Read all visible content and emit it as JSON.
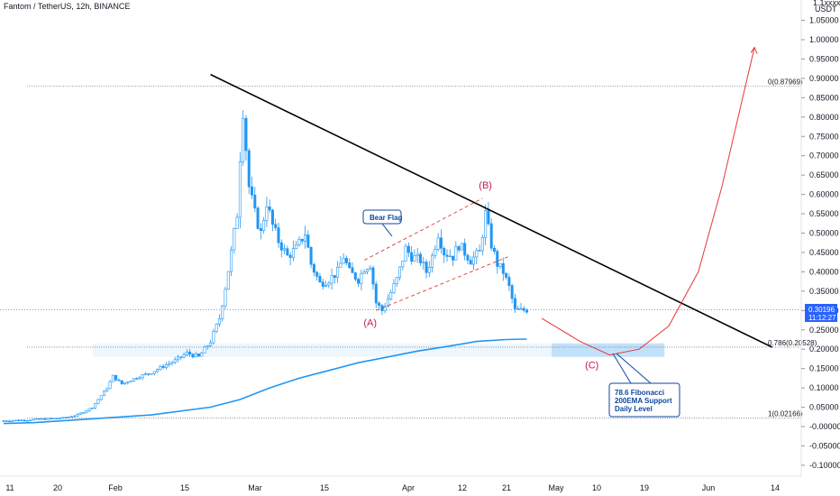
{
  "header": {
    "title": "Fantom / TetherUS, 12h, BINANCE",
    "currency_line1": "1.1xxxxx",
    "currency_line2": "USDT"
  },
  "price_badge": {
    "price": "0.30196",
    "countdown": "11:12:27",
    "color": "#2962ff"
  },
  "colors": {
    "candle": "#2196f3",
    "ema": "#2196f3",
    "trendline": "#000000",
    "projection": "#e53935",
    "annotation": "#c2185b",
    "support_zone": "#bbdefb"
  },
  "chart_data": {
    "type": "candlestick",
    "symbol": "FTMUSDT",
    "timeframe": "12h",
    "x_tick_labels": [
      "11",
      "20",
      "Feb",
      "15",
      "Mar",
      "15",
      "Apr",
      "12",
      "21",
      "May",
      "10",
      "19",
      "Jun",
      "14"
    ],
    "y_ticks": [
      1.05,
      1.0,
      0.95,
      0.9,
      0.85,
      0.8,
      0.75,
      0.7,
      0.65,
      0.6,
      0.55,
      0.5,
      0.45,
      0.4,
      0.35,
      0.3,
      0.25,
      0.2,
      0.15,
      0.1,
      0.05,
      0.0,
      -0.05,
      -0.1
    ],
    "y_tick_labels": [
      "1.05000",
      "1.00000",
      "0.95000",
      "0.90000",
      "0.85000",
      "0.80000",
      "0.75000",
      "0.70000",
      "0.65000",
      "0.60000",
      "0.55000",
      "0.50000",
      "0.45000",
      "0.40000",
      "0.35000",
      "0.30000",
      "0.25000",
      "0.20000",
      "0.15000",
      "0.10000",
      "0.05000",
      "-0.00000",
      "-0.05000",
      "-0.10000"
    ],
    "ylim": [
      -0.12,
      1.16
    ],
    "price_path": [
      [
        0,
        0.015
      ],
      [
        5,
        0.016
      ],
      [
        10,
        0.018
      ],
      [
        15,
        0.02
      ],
      [
        20,
        0.022
      ],
      [
        25,
        0.03
      ],
      [
        30,
        0.05
      ],
      [
        33,
        0.08
      ],
      [
        35,
        0.1
      ],
      [
        37,
        0.13
      ],
      [
        40,
        0.11
      ],
      [
        43,
        0.12
      ],
      [
        46,
        0.13
      ],
      [
        50,
        0.14
      ],
      [
        55,
        0.16
      ],
      [
        58,
        0.17
      ],
      [
        62,
        0.19
      ],
      [
        66,
        0.18
      ],
      [
        68,
        0.2
      ],
      [
        70,
        0.22
      ],
      [
        73,
        0.28
      ],
      [
        75,
        0.36
      ],
      [
        77,
        0.45
      ],
      [
        79,
        0.55
      ],
      [
        80,
        0.7
      ],
      [
        81,
        0.82
      ],
      [
        82,
        0.72
      ],
      [
        83,
        0.62
      ],
      [
        85,
        0.55
      ],
      [
        87,
        0.5
      ],
      [
        89,
        0.58
      ],
      [
        91,
        0.52
      ],
      [
        93,
        0.48
      ],
      [
        96,
        0.44
      ],
      [
        99,
        0.46
      ],
      [
        102,
        0.5
      ],
      [
        104,
        0.42
      ],
      [
        107,
        0.37
      ],
      [
        110,
        0.38
      ],
      [
        113,
        0.4
      ],
      [
        115,
        0.44
      ],
      [
        117,
        0.4
      ],
      [
        120,
        0.38
      ],
      [
        122,
        0.41
      ],
      [
        124,
        0.42
      ],
      [
        126,
        0.32
      ],
      [
        128,
        0.3
      ],
      [
        130,
        0.33
      ],
      [
        133,
        0.38
      ],
      [
        136,
        0.46
      ],
      [
        138,
        0.44
      ],
      [
        141,
        0.43
      ],
      [
        143,
        0.4
      ],
      [
        145,
        0.44
      ],
      [
        147,
        0.5
      ],
      [
        149,
        0.45
      ],
      [
        152,
        0.44
      ],
      [
        154,
        0.47
      ],
      [
        156,
        0.45
      ],
      [
        158,
        0.43
      ],
      [
        161,
        0.45
      ],
      [
        163,
        0.55
      ],
      [
        165,
        0.47
      ],
      [
        167,
        0.42
      ],
      [
        169,
        0.4
      ],
      [
        171,
        0.36
      ],
      [
        173,
        0.3
      ],
      [
        175,
        0.3
      ],
      [
        177,
        0.302
      ]
    ],
    "ema_200": [
      [
        0,
        0.008
      ],
      [
        10,
        0.01
      ],
      [
        30,
        0.02
      ],
      [
        50,
        0.03
      ],
      [
        70,
        0.05
      ],
      [
        80,
        0.07
      ],
      [
        90,
        0.1
      ],
      [
        100,
        0.125
      ],
      [
        110,
        0.145
      ],
      [
        120,
        0.165
      ],
      [
        130,
        0.18
      ],
      [
        140,
        0.195
      ],
      [
        150,
        0.207
      ],
      [
        160,
        0.22
      ],
      [
        170,
        0.225
      ],
      [
        177,
        0.226
      ]
    ],
    "trendline": [
      [
        70,
        0.91
      ],
      [
        260,
        0.205
      ]
    ],
    "bear_flag_upper": [
      [
        122,
        0.43
      ],
      [
        162,
        0.59
      ]
    ],
    "bear_flag_lower": [
      [
        126,
        0.3
      ],
      [
        171,
        0.44
      ]
    ],
    "projection_path": [
      [
        182,
        0.28
      ],
      [
        195,
        0.22
      ],
      [
        205,
        0.185
      ],
      [
        215,
        0.2
      ],
      [
        225,
        0.26
      ],
      [
        235,
        0.4
      ],
      [
        243,
        0.62
      ],
      [
        250,
        0.85
      ],
      [
        254,
        0.98
      ]
    ],
    "fib_levels": [
      {
        "label": "0(0.87969)",
        "value": 0.87969
      },
      {
        "label": "0.786(0.20528)",
        "value": 0.20528
      },
      {
        "label": "1(0.02166)",
        "value": 0.02166
      }
    ],
    "support_zone": [
      0.18,
      0.215
    ],
    "last_price": 0.30196,
    "annotations": [
      {
        "text": "(A)",
        "x": 124,
        "y": 0.26
      },
      {
        "text": "(B)",
        "x": 163,
        "y": 0.615
      },
      {
        "text": "(C)",
        "x": 199,
        "y": 0.15
      }
    ],
    "callouts": [
      {
        "text": "Bear Flag"
      },
      {
        "text": "78.6 Fibonacci"
      },
      {
        "text": "200EMA Support"
      },
      {
        "text": "Daily Level"
      }
    ]
  }
}
